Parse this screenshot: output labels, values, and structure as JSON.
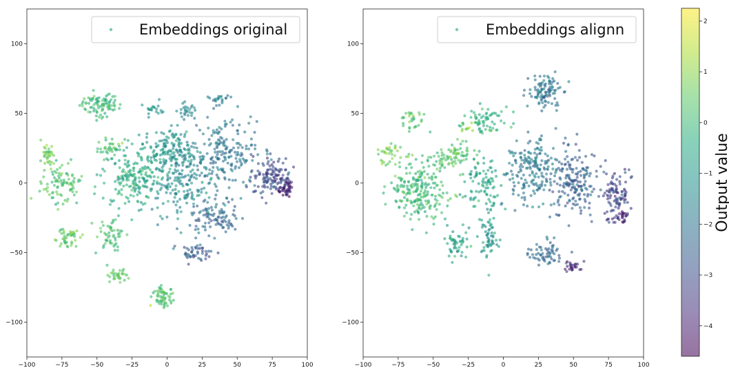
{
  "chart_data": [
    {
      "type": "scatter",
      "title": "",
      "xlabel": "",
      "ylabel": "",
      "xlim": [
        -100,
        100
      ],
      "ylim": [
        -125,
        125
      ],
      "xticks": [
        -100,
        -75,
        -50,
        -25,
        0,
        25,
        50,
        75,
        100
      ],
      "yticks": [
        -100,
        -50,
        0,
        50,
        100
      ],
      "xtick_labels": [
        "−100",
        "−75",
        "−50",
        "−25",
        "0",
        "25",
        "50",
        "75",
        "100"
      ],
      "ytick_labels": [
        "−100",
        "−50",
        "0",
        "50",
        "100"
      ],
      "grid": false,
      "legend": {
        "placement": "top-right",
        "entries": [
          "Embeddings original"
        ]
      },
      "series": [
        {
          "name": "Embeddings original",
          "color_by": "Output value",
          "clusters": [
            {
              "center": [
                -48,
                56
              ],
              "spread": [
                12,
                7
              ],
              "points": 90,
              "value": 0.0
            },
            {
              "center": [
                -85,
                20
              ],
              "spread": [
                4,
                8
              ],
              "points": 35,
              "value": 0.8
            },
            {
              "center": [
                -40,
                25
              ],
              "spread": [
                8,
                6
              ],
              "points": 35,
              "value": 0.2
            },
            {
              "center": [
                -75,
                0
              ],
              "spread": [
                12,
                12
              ],
              "points": 90,
              "value": 0.3
            },
            {
              "center": [
                -72,
                -40
              ],
              "spread": [
                8,
                6
              ],
              "points": 45,
              "value": 0.5
            },
            {
              "center": [
                -40,
                -35
              ],
              "spread": [
                8,
                10
              ],
              "points": 55,
              "value": 0.2
            },
            {
              "center": [
                -25,
                5
              ],
              "spread": [
                18,
                18
              ],
              "points": 180,
              "value": -0.4
            },
            {
              "center": [
                0,
                25
              ],
              "spread": [
                15,
                12
              ],
              "points": 120,
              "value": -1.0
            },
            {
              "center": [
                10,
                0
              ],
              "spread": [
                20,
                25
              ],
              "points": 200,
              "value": -1.3
            },
            {
              "center": [
                40,
                20
              ],
              "spread": [
                20,
                20
              ],
              "points": 200,
              "value": -2.0
            },
            {
              "center": [
                35,
                -25
              ],
              "spread": [
                15,
                10
              ],
              "points": 90,
              "value": -2.3
            },
            {
              "center": [
                75,
                5
              ],
              "spread": [
                12,
                12
              ],
              "points": 130,
              "value": -3.0
            },
            {
              "center": [
                85,
                -5
              ],
              "spread": [
                5,
                6
              ],
              "points": 40,
              "value": -4.0
            },
            {
              "center": [
                20,
                -50
              ],
              "spread": [
                10,
                5
              ],
              "points": 45,
              "value": -2.6
            },
            {
              "center": [
                -35,
                -67
              ],
              "spread": [
                5,
                4
              ],
              "points": 30,
              "value": 0.5
            },
            {
              "center": [
                -3,
                -82
              ],
              "spread": [
                7,
                5
              ],
              "points": 60,
              "value": 0.2
            },
            {
              "center": [
                38,
                60
              ],
              "spread": [
                5,
                4
              ],
              "points": 20,
              "value": -1.8
            },
            {
              "center": [
                -10,
                52
              ],
              "spread": [
                6,
                4
              ],
              "points": 20,
              "value": -1.0
            },
            {
              "center": [
                15,
                52
              ],
              "spread": [
                6,
                5
              ],
              "points": 25,
              "value": -1.5
            }
          ]
        }
      ]
    },
    {
      "type": "scatter",
      "title": "",
      "xlabel": "",
      "ylabel": "",
      "xlim": [
        -100,
        100
      ],
      "ylim": [
        -125,
        125
      ],
      "xticks": [
        -100,
        -75,
        -50,
        -25,
        0,
        25,
        50,
        75,
        100
      ],
      "yticks": [
        -100,
        -50,
        0,
        50,
        100
      ],
      "xtick_labels": [
        "−100",
        "−75",
        "−50",
        "−25",
        "0",
        "25",
        "50",
        "75",
        "100"
      ],
      "ytick_labels": [
        "−100",
        "−50",
        "0",
        "50",
        "100"
      ],
      "grid": false,
      "legend": {
        "placement": "top-right",
        "entries": [
          "Embeddings alignn"
        ]
      },
      "series": [
        {
          "name": "Embeddings alignn",
          "color_by": "Output value",
          "clusters": [
            {
              "center": [
                -80,
                20
              ],
              "spread": [
                8,
                8
              ],
              "points": 40,
              "value": 0.8
            },
            {
              "center": [
                -60,
                -5
              ],
              "spread": [
                16,
                18
              ],
              "points": 220,
              "value": 0.0
            },
            {
              "center": [
                -35,
                20
              ],
              "spread": [
                12,
                10
              ],
              "points": 80,
              "value": 0.4
            },
            {
              "center": [
                -10,
                45
              ],
              "spread": [
                15,
                7
              ],
              "points": 70,
              "value": -0.2
            },
            {
              "center": [
                -15,
                0
              ],
              "spread": [
                10,
                15
              ],
              "points": 90,
              "value": -0.6
            },
            {
              "center": [
                -10,
                -40
              ],
              "spread": [
                5,
                15
              ],
              "points": 60,
              "value": -1.0
            },
            {
              "center": [
                -35,
                -45
              ],
              "spread": [
                7,
                10
              ],
              "points": 50,
              "value": -0.6
            },
            {
              "center": [
                30,
                65
              ],
              "spread": [
                10,
                10
              ],
              "points": 100,
              "value": -2.0
            },
            {
              "center": [
                20,
                10
              ],
              "spread": [
                15,
                20
              ],
              "points": 180,
              "value": -1.8
            },
            {
              "center": [
                50,
                0
              ],
              "spread": [
                15,
                20
              ],
              "points": 180,
              "value": -2.5
            },
            {
              "center": [
                80,
                -10
              ],
              "spread": [
                8,
                15
              ],
              "points": 100,
              "value": -3.2
            },
            {
              "center": [
                85,
                -23
              ],
              "spread": [
                4,
                4
              ],
              "points": 20,
              "value": -4.0
            },
            {
              "center": [
                30,
                -50
              ],
              "spread": [
                10,
                8
              ],
              "points": 60,
              "value": -2.3
            },
            {
              "center": [
                50,
                -60
              ],
              "spread": [
                5,
                3
              ],
              "points": 25,
              "value": -3.8
            },
            {
              "center": [
                -65,
                45
              ],
              "spread": [
                8,
                5
              ],
              "points": 30,
              "value": 0.3
            },
            {
              "center": [
                -25,
                38
              ],
              "spread": [
                4,
                3
              ],
              "points": 10,
              "value": 1.2
            }
          ]
        }
      ]
    }
  ],
  "colorbar": {
    "label": "Output value",
    "min": -4.6,
    "max": 2.25,
    "ticks": [
      2,
      1,
      0,
      -1,
      -2,
      -3,
      -4
    ],
    "tick_labels": [
      "2",
      "1",
      "0",
      "−1",
      "−2",
      "−3",
      "−4"
    ],
    "colormap": "viridis",
    "alpha": 0.55
  }
}
